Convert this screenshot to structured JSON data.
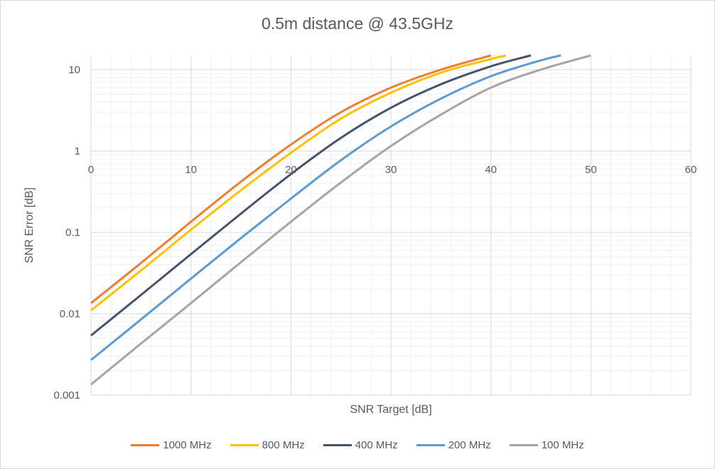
{
  "chart_data": {
    "type": "line",
    "title": "0.5m distance @ 43.5GHz",
    "xlabel": "SNR Target [dB]",
    "ylabel": "SNR Error [dB]",
    "xlim": [
      0,
      60
    ],
    "ylim": [
      0.001,
      15
    ],
    "yscale": "log",
    "x_ticks": [
      "0",
      "10",
      "20",
      "30",
      "40",
      "50",
      "60"
    ],
    "y_ticks": [
      "0.001",
      "0.01",
      "0.1",
      "1",
      "10"
    ],
    "grid": true,
    "legend_position": "bottom",
    "series": [
      {
        "name": "1000 MHz",
        "color": "#ED7D31",
        "x": [
          0,
          5,
          10,
          15,
          20,
          25,
          30,
          35,
          40
        ],
        "y": [
          0.0135,
          0.042,
          0.135,
          0.42,
          1.2,
          3.0,
          6.0,
          10.0,
          15.0
        ]
      },
      {
        "name": "800 MHz",
        "color": "#FFC000",
        "x": [
          0,
          5,
          10,
          15,
          20,
          25,
          30,
          35,
          40,
          41.5
        ],
        "y": [
          0.011,
          0.034,
          0.108,
          0.33,
          0.95,
          2.5,
          5.2,
          9.2,
          13.5,
          15.0
        ]
      },
      {
        "name": "400 MHz",
        "color": "#44546A",
        "x": [
          0,
          5,
          10,
          15,
          20,
          25,
          30,
          35,
          40,
          44
        ],
        "y": [
          0.0054,
          0.017,
          0.054,
          0.17,
          0.52,
          1.45,
          3.4,
          6.6,
          11.0,
          15.0
        ]
      },
      {
        "name": "200 MHz",
        "color": "#5B9BD5",
        "x": [
          0,
          5,
          10,
          15,
          20,
          25,
          30,
          35,
          40,
          45,
          47
        ],
        "y": [
          0.0027,
          0.0085,
          0.027,
          0.085,
          0.26,
          0.77,
          2.0,
          4.4,
          8.3,
          13.0,
          15.0
        ]
      },
      {
        "name": "100 MHz",
        "color": "#A5A5A5",
        "x": [
          0,
          5,
          10,
          15,
          20,
          25,
          30,
          35,
          40,
          45,
          50
        ],
        "y": [
          0.00135,
          0.0043,
          0.0135,
          0.043,
          0.135,
          0.41,
          1.15,
          2.8,
          6.0,
          10.0,
          15.0
        ]
      }
    ]
  }
}
